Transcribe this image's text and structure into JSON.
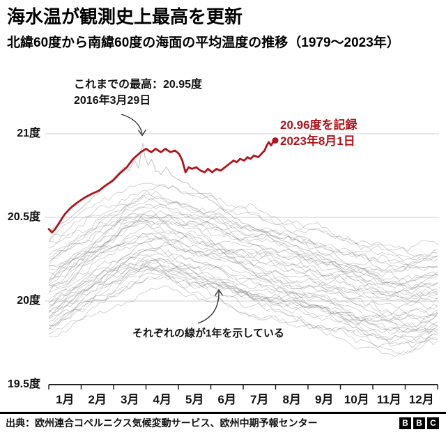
{
  "page": {
    "title": "海水温が観測史上最高を更新",
    "subtitle": "北緯60度から南緯60度の海面の平均温度の推移（1979～2023年）",
    "source": "出典：欧州連合コペルニクス気候変動サービス、欧州中期予報センター",
    "logo_letters": [
      "B",
      "B",
      "C"
    ]
  },
  "annotations": {
    "previous_record": {
      "line1": "これまでの最高：20.95度",
      "line2": "2016年3月29日"
    },
    "new_record": {
      "line1": "20.96度を記録",
      "line2": "2023年8月1日",
      "color": "#b0131a"
    },
    "lines_note": "それぞれの線が1年を示している"
  },
  "chart_data": {
    "type": "line",
    "title": "海水温が観測史上最高を更新",
    "subtitle": "北緯60度から南緯60度の海面の平均温度の推移（1979～2023年）",
    "xlabel": "",
    "ylabel": "",
    "unit": "度",
    "grid": "horizontal",
    "x_tick_labels": [
      "1月",
      "2月",
      "3月",
      "4月",
      "5月",
      "6月",
      "7月",
      "8月",
      "9月",
      "10月",
      "11月",
      "12月"
    ],
    "y_ticks": [
      {
        "label": "21度",
        "value": 21
      },
      {
        "label": "20.5度",
        "value": 20.5
      },
      {
        "label": "20度",
        "value": 20
      },
      {
        "label": "19.5度",
        "value": 19.5
      }
    ],
    "y_range": [
      19.5,
      21.1
    ],
    "x_range_days": [
      0,
      364
    ],
    "highlight_series": {
      "name": "2023年",
      "color": "#b0131a",
      "stroke_width": 2.8,
      "end_dot": true,
      "record_value": 20.96,
      "record_date": "2023年8月1日",
      "points": [
        [
          0,
          20.43
        ],
        [
          3,
          20.41
        ],
        [
          6,
          20.43
        ],
        [
          10,
          20.47
        ],
        [
          15,
          20.52
        ],
        [
          21,
          20.56
        ],
        [
          27,
          20.59
        ],
        [
          34,
          20.62
        ],
        [
          40,
          20.64
        ],
        [
          47,
          20.66
        ],
        [
          53,
          20.69
        ],
        [
          60,
          20.72
        ],
        [
          66,
          20.76
        ],
        [
          73,
          20.8
        ],
        [
          79,
          20.85
        ],
        [
          86,
          20.89
        ],
        [
          91,
          20.91
        ],
        [
          96,
          20.89
        ],
        [
          100,
          20.91
        ],
        [
          105,
          20.89
        ],
        [
          109,
          20.91
        ],
        [
          114,
          20.89
        ],
        [
          118,
          20.9
        ],
        [
          122,
          20.88
        ],
        [
          125,
          20.84
        ],
        [
          128,
          20.77
        ],
        [
          131,
          20.8
        ],
        [
          134,
          20.79
        ],
        [
          138,
          20.8
        ],
        [
          142,
          20.78
        ],
        [
          146,
          20.77
        ],
        [
          149,
          20.79
        ],
        [
          153,
          20.77
        ],
        [
          157,
          20.79
        ],
        [
          161,
          20.78
        ],
        [
          165,
          20.8
        ],
        [
          169,
          20.82
        ],
        [
          173,
          20.84
        ],
        [
          176,
          20.83
        ],
        [
          179,
          20.85
        ],
        [
          183,
          20.84
        ],
        [
          186,
          20.86
        ],
        [
          189,
          20.85
        ],
        [
          192,
          20.87
        ],
        [
          196,
          20.86
        ],
        [
          199,
          20.88
        ],
        [
          202,
          20.9
        ],
        [
          204,
          20.93
        ],
        [
          206,
          20.95
        ],
        [
          208,
          20.93
        ],
        [
          210,
          20.95
        ],
        [
          212,
          20.96
        ]
      ]
    },
    "record_2016_series": {
      "name": "2016年",
      "color": "#8f8f8f",
      "record_value": 20.95,
      "record_date": "2016年3月29日",
      "points": [
        [
          0,
          20.42
        ],
        [
          8,
          20.45
        ],
        [
          16,
          20.48
        ],
        [
          24,
          20.52
        ],
        [
          32,
          20.56
        ],
        [
          40,
          20.61
        ],
        [
          48,
          20.66
        ],
        [
          56,
          20.71
        ],
        [
          64,
          20.76
        ],
        [
          70,
          20.8
        ],
        [
          75,
          20.78
        ],
        [
          80,
          20.84
        ],
        [
          84,
          20.8
        ],
        [
          87,
          20.9
        ],
        [
          88,
          20.95
        ],
        [
          90,
          20.86
        ],
        [
          93,
          20.81
        ],
        [
          96,
          20.85
        ],
        [
          100,
          20.78
        ],
        [
          105,
          20.76
        ],
        [
          110,
          20.8
        ],
        [
          115,
          20.75
        ],
        [
          122,
          20.72
        ],
        [
          130,
          20.7
        ],
        [
          140,
          20.65
        ],
        [
          150,
          20.61
        ],
        [
          162,
          20.55
        ],
        [
          175,
          20.49
        ],
        [
          190,
          20.44
        ],
        [
          205,
          20.4
        ],
        [
          220,
          20.36
        ],
        [
          235,
          20.32
        ],
        [
          250,
          20.28
        ],
        [
          265,
          20.24
        ],
        [
          280,
          20.2
        ],
        [
          295,
          20.16
        ],
        [
          310,
          20.12
        ],
        [
          325,
          20.1
        ],
        [
          340,
          20.12
        ],
        [
          352,
          20.15
        ],
        [
          364,
          20.16
        ]
      ]
    },
    "background_years": {
      "label": "1979〜2022年（各線が1年を示す）",
      "count": 44,
      "color": "#808080",
      "opacity": 0.38,
      "stroke_width": 0.9,
      "seed": 11,
      "base_range": [
        19.8,
        20.34
      ],
      "year_jitter": 0.09,
      "autumn_dip_max": 0.15,
      "walk_step": 0.045,
      "walk_damp": 0.93,
      "fast_noise": 0.02,
      "seasonal_profile": [
        [
          0,
          0
        ],
        [
          20,
          0.08
        ],
        [
          45,
          0.18
        ],
        [
          70,
          0.27
        ],
        [
          90,
          0.32
        ],
        [
          105,
          0.31
        ],
        [
          125,
          0.27
        ],
        [
          150,
          0.23
        ],
        [
          175,
          0.19
        ],
        [
          200,
          0.16
        ],
        [
          225,
          0.13
        ],
        [
          250,
          0.1
        ],
        [
          275,
          0.06
        ],
        [
          300,
          0.02
        ],
        [
          320,
          -0.01
        ],
        [
          340,
          -0.02
        ],
        [
          364,
          0.01
        ]
      ]
    }
  }
}
